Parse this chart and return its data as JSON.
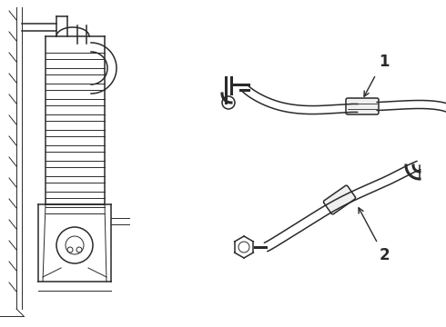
{
  "bg_color": "#ffffff",
  "line_color": "#2a2a2a",
  "lw": 1.1,
  "lw_thin": 0.7,
  "lw_thick": 2.2
}
